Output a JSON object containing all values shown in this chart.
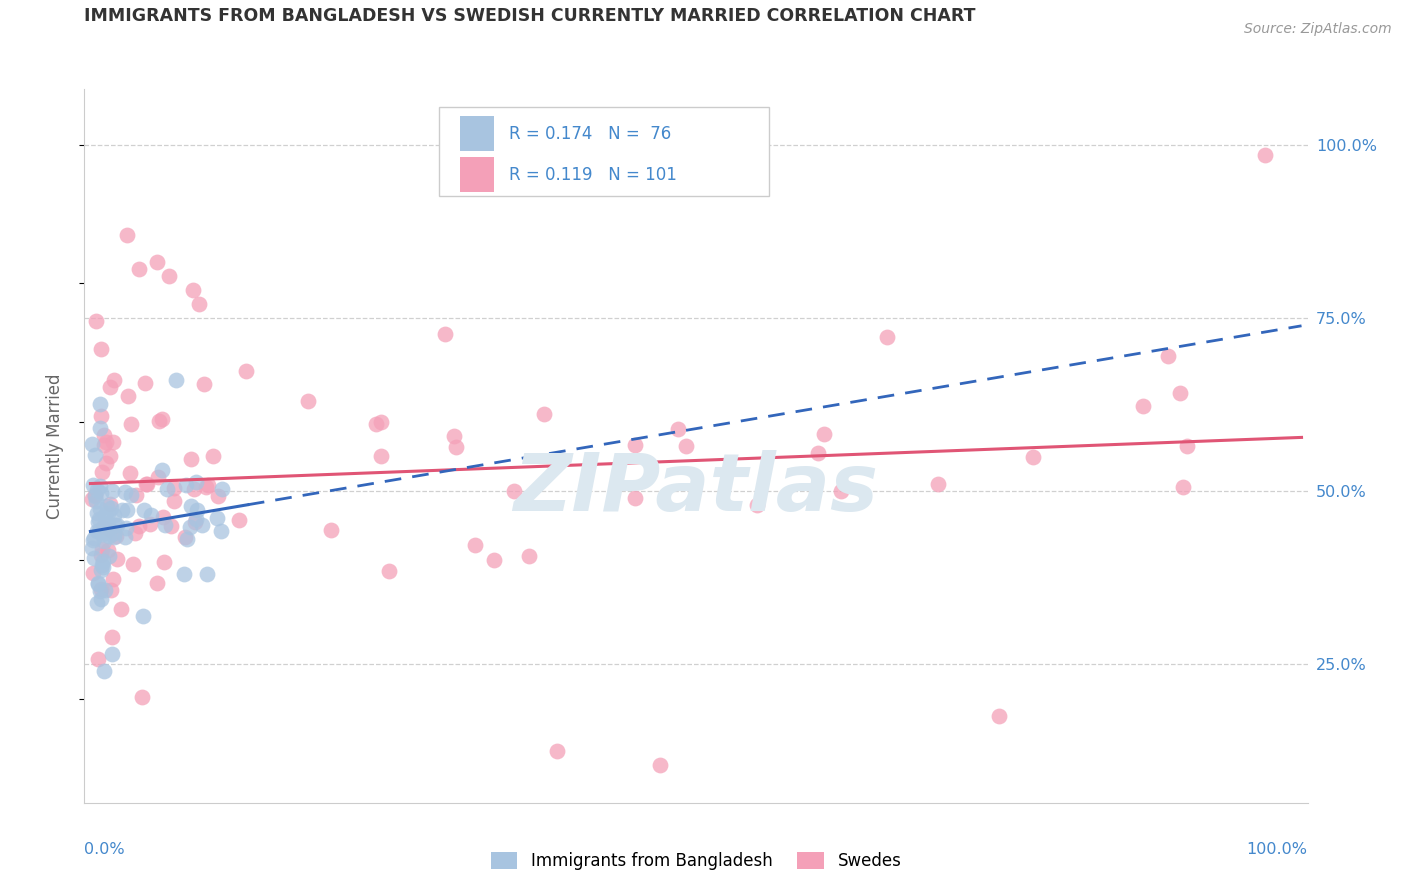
{
  "title": "IMMIGRANTS FROM BANGLADESH VS SWEDISH CURRENTLY MARRIED CORRELATION CHART",
  "source": "Source: ZipAtlas.com",
  "ylabel": "Currently Married",
  "y_ticks": [
    0.25,
    0.5,
    0.75,
    1.0
  ],
  "y_tick_labels": [
    "25.0%",
    "50.0%",
    "75.0%",
    "100.0%"
  ],
  "bangladesh_R": 0.174,
  "bangladesh_N": 76,
  "swedes_R": 0.119,
  "swedes_N": 101,
  "legend_label_1": "Immigrants from Bangladesh",
  "legend_label_2": "Swedes",
  "color_bangladesh": "#a8c4e0",
  "color_swedes": "#f4a0b8",
  "color_trendline_bangladesh": "#3366bb",
  "color_trendline_swedes": "#e05575",
  "background_color": "#ffffff",
  "grid_color": "#d0d0d0",
  "title_color": "#333333",
  "source_color": "#999999",
  "axis_tick_color": "#4488cc",
  "watermark_color": "#dce8f0",
  "watermark": "ZIPatlas"
}
